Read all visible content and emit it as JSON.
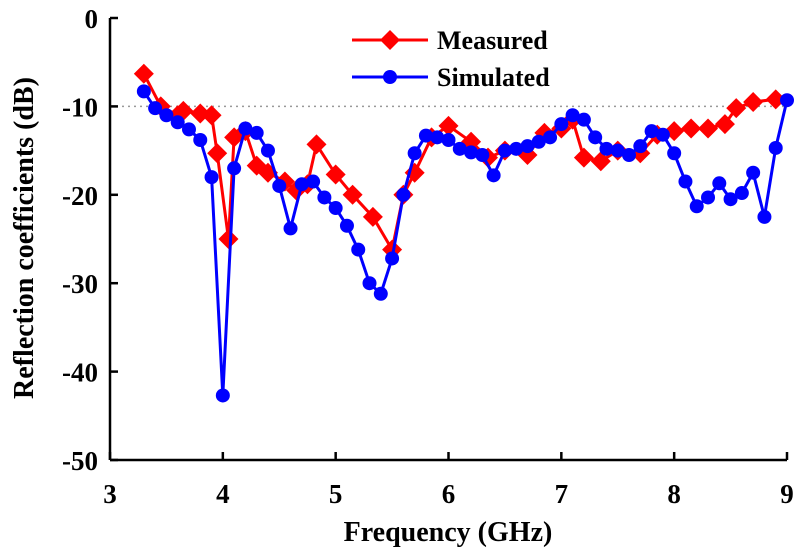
{
  "chart_data": {
    "type": "line",
    "xlabel": "Frequency (GHz)",
    "ylabel": "Reflection coefficients (dB)",
    "xlim": [
      3,
      9
    ],
    "ylim": [
      -50,
      0
    ],
    "xticks": [
      3,
      4,
      5,
      6,
      7,
      8,
      9
    ],
    "yticks": [
      0,
      -10,
      -20,
      -30,
      -40,
      -50
    ],
    "reference_line": {
      "y": -10,
      "style": "dotted",
      "color": "#999999"
    },
    "grid": false,
    "legend_position": "top-center",
    "series": [
      {
        "name": "Measured",
        "color": "#ff0000",
        "marker": "diamond",
        "x": [
          3.3,
          3.45,
          3.6,
          3.65,
          3.8,
          3.9,
          3.95,
          4.05,
          4.1,
          4.2,
          4.3,
          4.4,
          4.55,
          4.65,
          4.75,
          4.83,
          5.0,
          5.15,
          5.33,
          5.5,
          5.6,
          5.7,
          5.85,
          6.0,
          6.2,
          6.35,
          6.5,
          6.7,
          6.85,
          7.0,
          7.1,
          7.2,
          7.35,
          7.5,
          7.7,
          7.85,
          8.0,
          8.15,
          8.3,
          8.45,
          8.55,
          8.7,
          8.9
        ],
        "y": [
          -6.3,
          -10.0,
          -11.0,
          -10.5,
          -10.8,
          -11.0,
          -15.3,
          -25.0,
          -13.5,
          -12.8,
          -16.7,
          -17.5,
          -18.5,
          -19.5,
          -18.8,
          -14.3,
          -17.7,
          -20.0,
          -22.5,
          -26.2,
          -20.0,
          -17.5,
          -13.5,
          -12.2,
          -14.0,
          -15.8,
          -15.0,
          -15.5,
          -13.0,
          -12.5,
          -11.5,
          -15.8,
          -16.2,
          -15.0,
          -15.3,
          -13.2,
          -12.8,
          -12.5,
          -12.5,
          -12.0,
          -10.2,
          -9.5,
          -9.2
        ]
      },
      {
        "name": "Simulated",
        "color": "#0000ff",
        "marker": "circle",
        "x": [
          3.3,
          3.4,
          3.5,
          3.6,
          3.7,
          3.8,
          3.9,
          4.0,
          4.1,
          4.2,
          4.3,
          4.4,
          4.5,
          4.6,
          4.7,
          4.8,
          4.9,
          5.0,
          5.1,
          5.2,
          5.3,
          5.4,
          5.5,
          5.6,
          5.7,
          5.8,
          5.9,
          6.0,
          6.1,
          6.2,
          6.3,
          6.4,
          6.5,
          6.6,
          6.7,
          6.8,
          6.9,
          7.0,
          7.1,
          7.2,
          7.3,
          7.4,
          7.5,
          7.6,
          7.7,
          7.8,
          7.9,
          8.0,
          8.1,
          8.2,
          8.3,
          8.4,
          8.5,
          8.6,
          8.7,
          8.8,
          8.9,
          9.0
        ],
        "y": [
          -8.3,
          -10.2,
          -11.0,
          -11.8,
          -12.6,
          -13.8,
          -18.0,
          -42.7,
          -17.0,
          -12.5,
          -13.0,
          -15.0,
          -19.0,
          -23.8,
          -18.8,
          -18.5,
          -20.3,
          -21.5,
          -23.5,
          -26.2,
          -30.0,
          -31.2,
          -27.2,
          -20.0,
          -15.3,
          -13.3,
          -13.5,
          -13.8,
          -14.8,
          -15.2,
          -15.5,
          -17.8,
          -15.0,
          -14.8,
          -14.5,
          -14.0,
          -13.5,
          -12.0,
          -11.0,
          -11.5,
          -13.5,
          -14.8,
          -15.0,
          -15.5,
          -14.5,
          -12.8,
          -13.2,
          -15.3,
          -18.5,
          -21.3,
          -20.3,
          -18.7,
          -20.5,
          -19.8,
          -17.5,
          -22.5,
          -14.7,
          -9.3
        ]
      }
    ]
  }
}
